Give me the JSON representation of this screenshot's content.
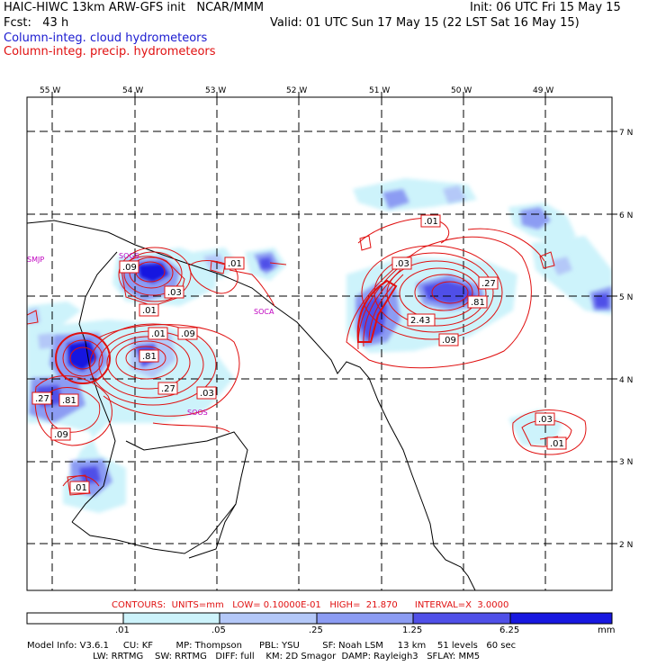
{
  "header": {
    "title_left": "HAIC-HIWC 13km ARW-GFS init   NCAR/MMM",
    "fcst": "Fcst:   43 h",
    "init": "Init: 06 UTC Fri 15 May 15",
    "valid": "Valid: 01 UTC Sun 17 May 15 (22 LST Sat 16 May 15)",
    "field_cloud": "Column-integ. cloud hydrometeors",
    "field_precip": "Column-integ. precip. hydrometeors"
  },
  "map": {
    "lon_labels": [
      "55 W",
      "54 W",
      "53 W",
      "52 W",
      "51 W",
      "50 W",
      "49 W"
    ],
    "lat_labels": [
      "7 N",
      "6 N",
      "5 N",
      "4 N",
      "3 N",
      "2 N"
    ],
    "stations": [
      "SMJP",
      "SOGS",
      "SOCA",
      "SOOS"
    ],
    "contour_labels": [
      ".09",
      ".03",
      ".01",
      ".01",
      ".09",
      ".81",
      ".27",
      ".03",
      ".27",
      ".81",
      ".09",
      ".01",
      ".01",
      ".01",
      ".03",
      ".27",
      ".81",
      "2.43",
      ".09",
      ".03",
      ".01"
    ]
  },
  "contours_info": "CONTOURS:  UNITS=mm   LOW= 0.10000E-01   HIGH=  21.870      INTERVAL=X  3.0000",
  "colorbar": {
    "levels": [
      ".01",
      ".05",
      ".25",
      "1.25",
      "6.25"
    ],
    "unit": "mm",
    "colors": [
      "#ffffff",
      "#cdf3fb",
      "#b4c8f8",
      "#8c9cf3",
      "#5050e8",
      "#1818e0"
    ]
  },
  "footer": {
    "line1": "Model Info: V3.6.1     CU: KF        MP: Thompson      PBL: YSU        SF: Noah LSM     13 km    51 levels   60 sec",
    "line2": "                       LW: RRTMG    SW: RRTMG   DIFF: full    KM: 2D Smagor  DAMP: Rayleigh3   SFLAY: MM5"
  }
}
